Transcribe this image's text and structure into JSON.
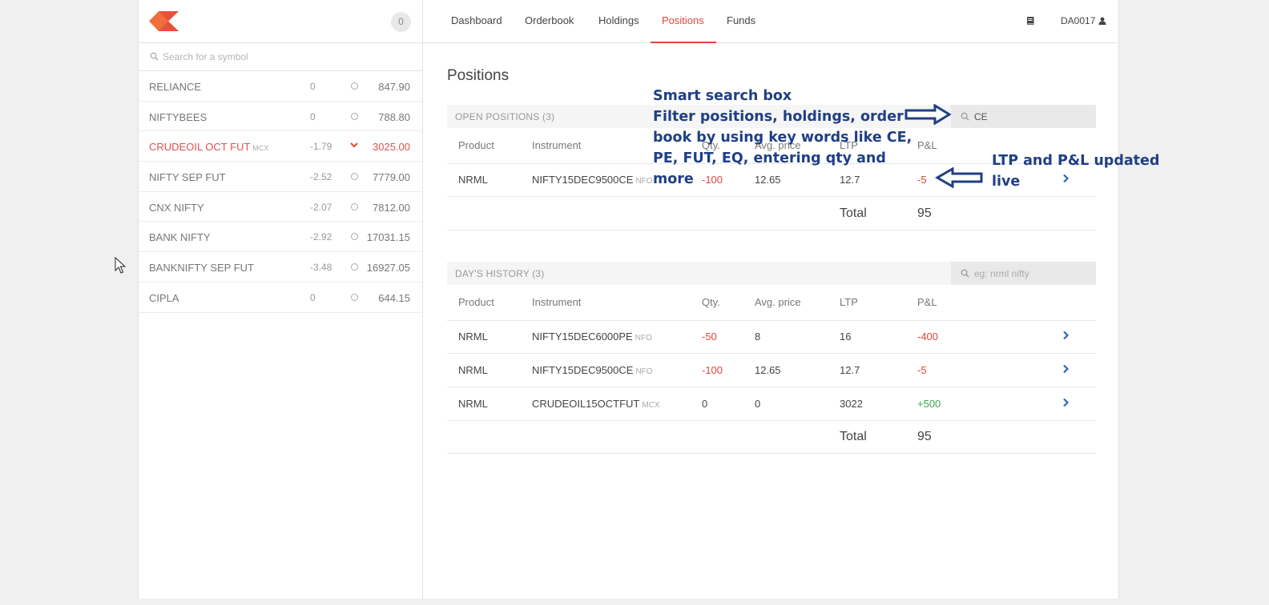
{
  "sidebar": {
    "notification_count": "0",
    "search_placeholder": "Search for a symbol",
    "watchlist": [
      {
        "symbol": "RELIANCE",
        "exchange": "",
        "change": "0",
        "price": "847.90",
        "direction": "flat"
      },
      {
        "symbol": "NIFTYBEES",
        "exchange": "",
        "change": "0",
        "price": "788.80",
        "direction": "flat"
      },
      {
        "symbol": "CRUDEOIL OCT FUT",
        "exchange": "MCX",
        "change": "-1.79",
        "price": "3025.00",
        "direction": "down"
      },
      {
        "symbol": "NIFTY SEP FUT",
        "exchange": "",
        "change": "-2.52",
        "price": "7779.00",
        "direction": "flat"
      },
      {
        "symbol": "CNX NIFTY",
        "exchange": "",
        "change": "-2.07",
        "price": "7812.00",
        "direction": "flat"
      },
      {
        "symbol": "BANK NIFTY",
        "exchange": "",
        "change": "-2.92",
        "price": "17031.15",
        "direction": "flat"
      },
      {
        "symbol": "BANKNIFTY SEP FUT",
        "exchange": "",
        "change": "-3.48",
        "price": "16927.05",
        "direction": "flat"
      },
      {
        "symbol": "CIPLA",
        "exchange": "",
        "change": "0",
        "price": "644.15",
        "direction": "flat"
      }
    ]
  },
  "nav": {
    "tabs": [
      {
        "label": "Dashboard",
        "active": false
      },
      {
        "label": "Orderbook",
        "active": false
      },
      {
        "label": "Holdings",
        "active": false
      },
      {
        "label": "Positions",
        "active": true
      },
      {
        "label": "Funds",
        "active": false
      }
    ],
    "book_icon": "book-icon",
    "user_id": "DA0017",
    "user_icon": "user-icon"
  },
  "main": {
    "title": "Positions",
    "columns": [
      "Product",
      "Instrument",
      "Qty.",
      "Avg. price",
      "LTP",
      "P&L"
    ],
    "open_positions": {
      "title": "OPEN POSITIONS (3)",
      "filter_value": "CE",
      "rows": [
        {
          "product": "NRML",
          "instrument": "NIFTY15DEC9500CE",
          "exchange": "NFO",
          "qty": "-100",
          "avg": "12.65",
          "ltp": "12.7",
          "pnl": "-5"
        }
      ],
      "total_label": "Total",
      "total_value": "95"
    },
    "days_history": {
      "title": "DAY'S HISTORY (3)",
      "filter_placeholder": "eg: nrml nifty",
      "rows": [
        {
          "product": "NRML",
          "instrument": "NIFTY15DEC6000PE",
          "exchange": "NFO",
          "qty": "-50",
          "avg": "8",
          "ltp": "16",
          "pnl": "-400"
        },
        {
          "product": "NRML",
          "instrument": "NIFTY15DEC9500CE",
          "exchange": "NFO",
          "qty": "-100",
          "avg": "12.65",
          "ltp": "12.7",
          "pnl": "-5"
        },
        {
          "product": "NRML",
          "instrument": "CRUDEOIL15OCTFUT",
          "exchange": "MCX",
          "qty": "0",
          "avg": "0",
          "ltp": "3022",
          "pnl": "+500"
        }
      ],
      "total_label": "Total",
      "total_value": "95"
    }
  },
  "annotations": {
    "search_note": [
      "Smart search box",
      "Filter positions, holdings, order",
      "book by using key words like CE,",
      "PE, FUT, EQ, entering qty and",
      "more"
    ],
    "live_note": [
      "LTP and P&L updated",
      "live"
    ]
  },
  "colors": {
    "accent": "#e0453a",
    "positive": "#3aa84a",
    "annotation": "#1f3f85"
  }
}
